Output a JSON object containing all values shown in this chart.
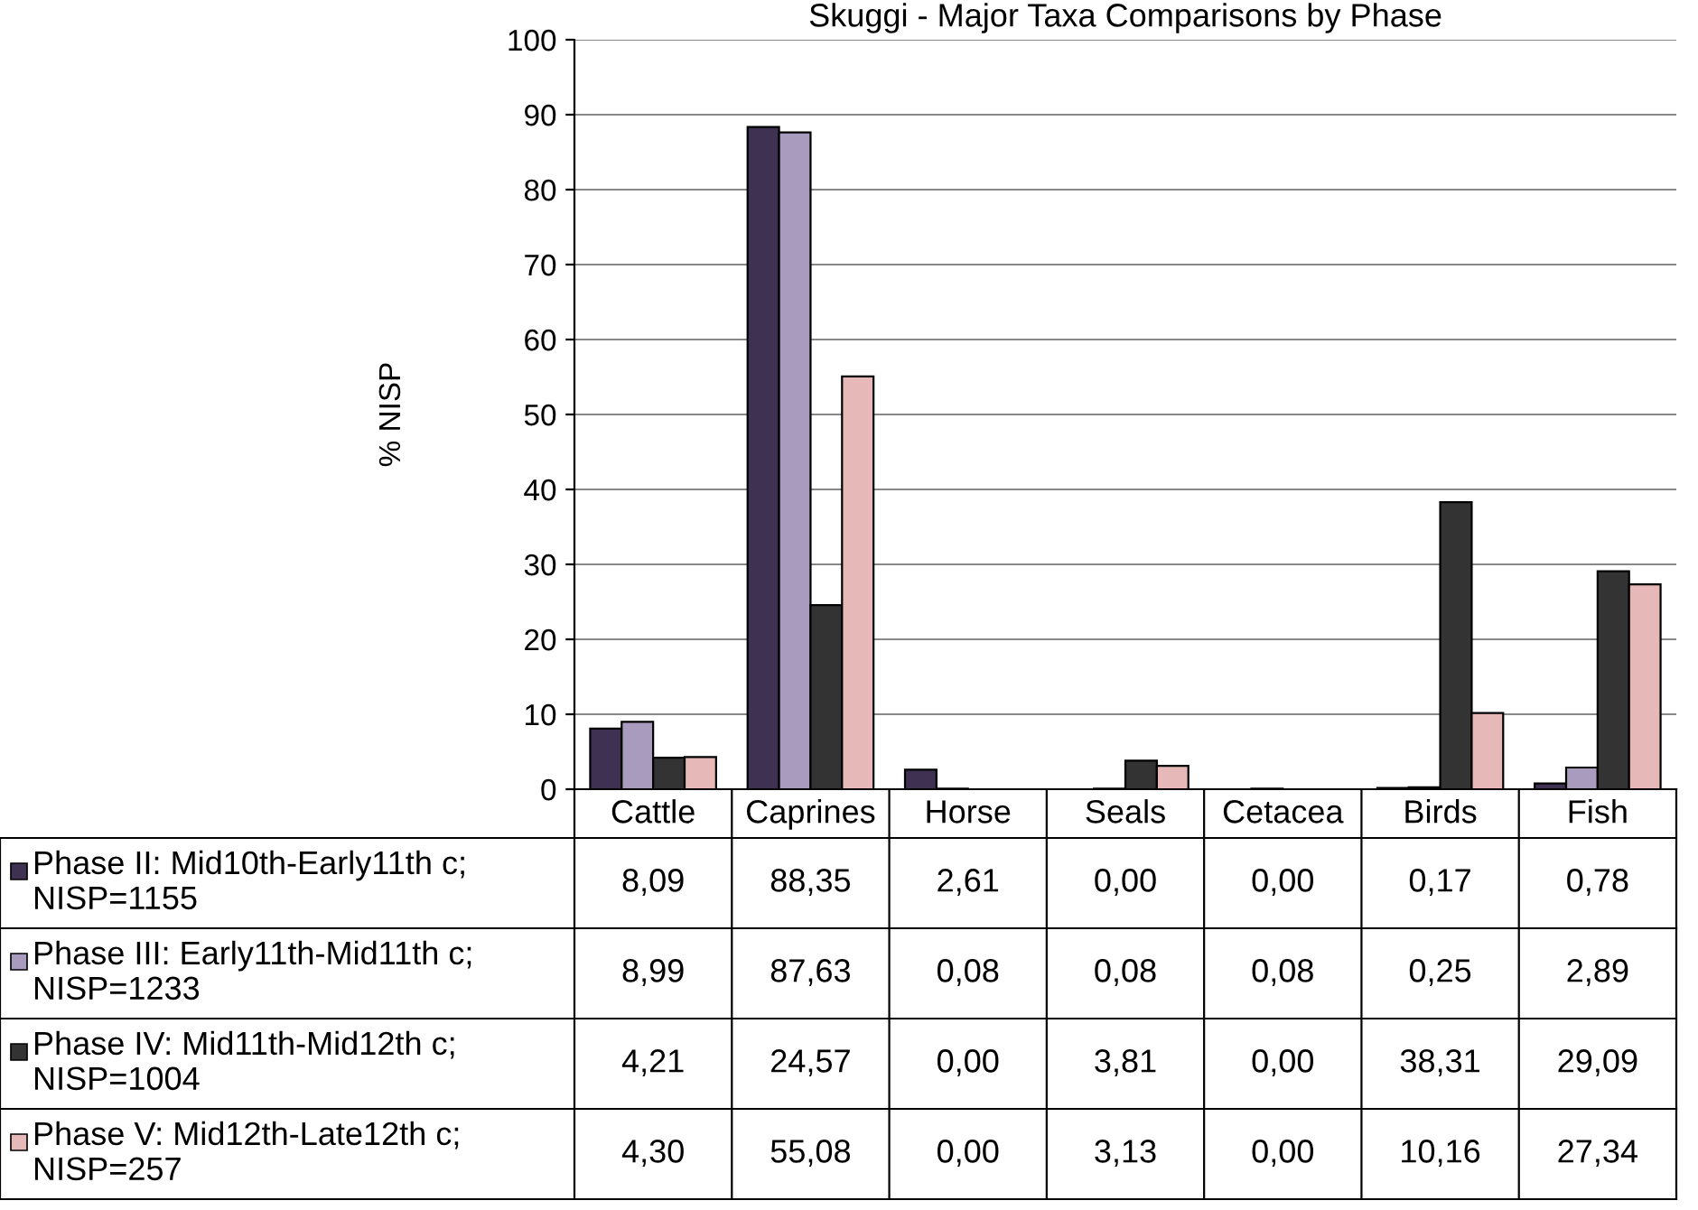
{
  "chart_data": {
    "type": "bar",
    "title": "Skuggi - Major Taxa Comparisons by Phase",
    "ylabel": "% NISP",
    "categories": [
      "Cattle",
      "Caprines",
      "Horse",
      "Seals",
      "Cetacea",
      "Birds",
      "Fish"
    ],
    "series": [
      {
        "name": "Phase II: Mid10th-Early11th c;\nNISP=1155",
        "color": "#3f3151",
        "values": [
          8.09,
          88.35,
          2.61,
          0.0,
          0.0,
          0.17,
          0.78
        ],
        "value_labels": [
          "8,09",
          "88,35",
          "2,61",
          "0,00",
          "0,00",
          "0,17",
          "0,78"
        ]
      },
      {
        "name": "Phase III: Early11th-Mid11th c;\nNISP=1233",
        "color": "#a99bbd",
        "values": [
          8.99,
          87.63,
          0.08,
          0.08,
          0.08,
          0.25,
          2.89
        ],
        "value_labels": [
          "8,99",
          "87,63",
          "0,08",
          "0,08",
          "0,08",
          "0,25",
          "2,89"
        ]
      },
      {
        "name": "Phase IV: Mid11th-Mid12th c;\nNISP=1004",
        "color": "#333333",
        "values": [
          4.21,
          24.57,
          0.0,
          3.81,
          0.0,
          38.31,
          29.09
        ],
        "value_labels": [
          "4,21",
          "24,57",
          "0,00",
          "3,81",
          "0,00",
          "38,31",
          "29,09"
        ]
      },
      {
        "name": "Phase V: Mid12th-Late12th c;\nNISP=257",
        "color": "#e6b9b8",
        "values": [
          4.3,
          55.08,
          0.0,
          3.13,
          0.0,
          10.16,
          27.34
        ],
        "value_labels": [
          "4,30",
          "55,08",
          "0,00",
          "3,13",
          "0,00",
          "10,16",
          "27,34"
        ]
      }
    ],
    "ylim": [
      0,
      100
    ],
    "yticks": [
      0,
      10,
      20,
      30,
      40,
      50,
      60,
      70,
      80,
      90,
      100
    ],
    "grid": "y",
    "legend": "bottom left"
  }
}
